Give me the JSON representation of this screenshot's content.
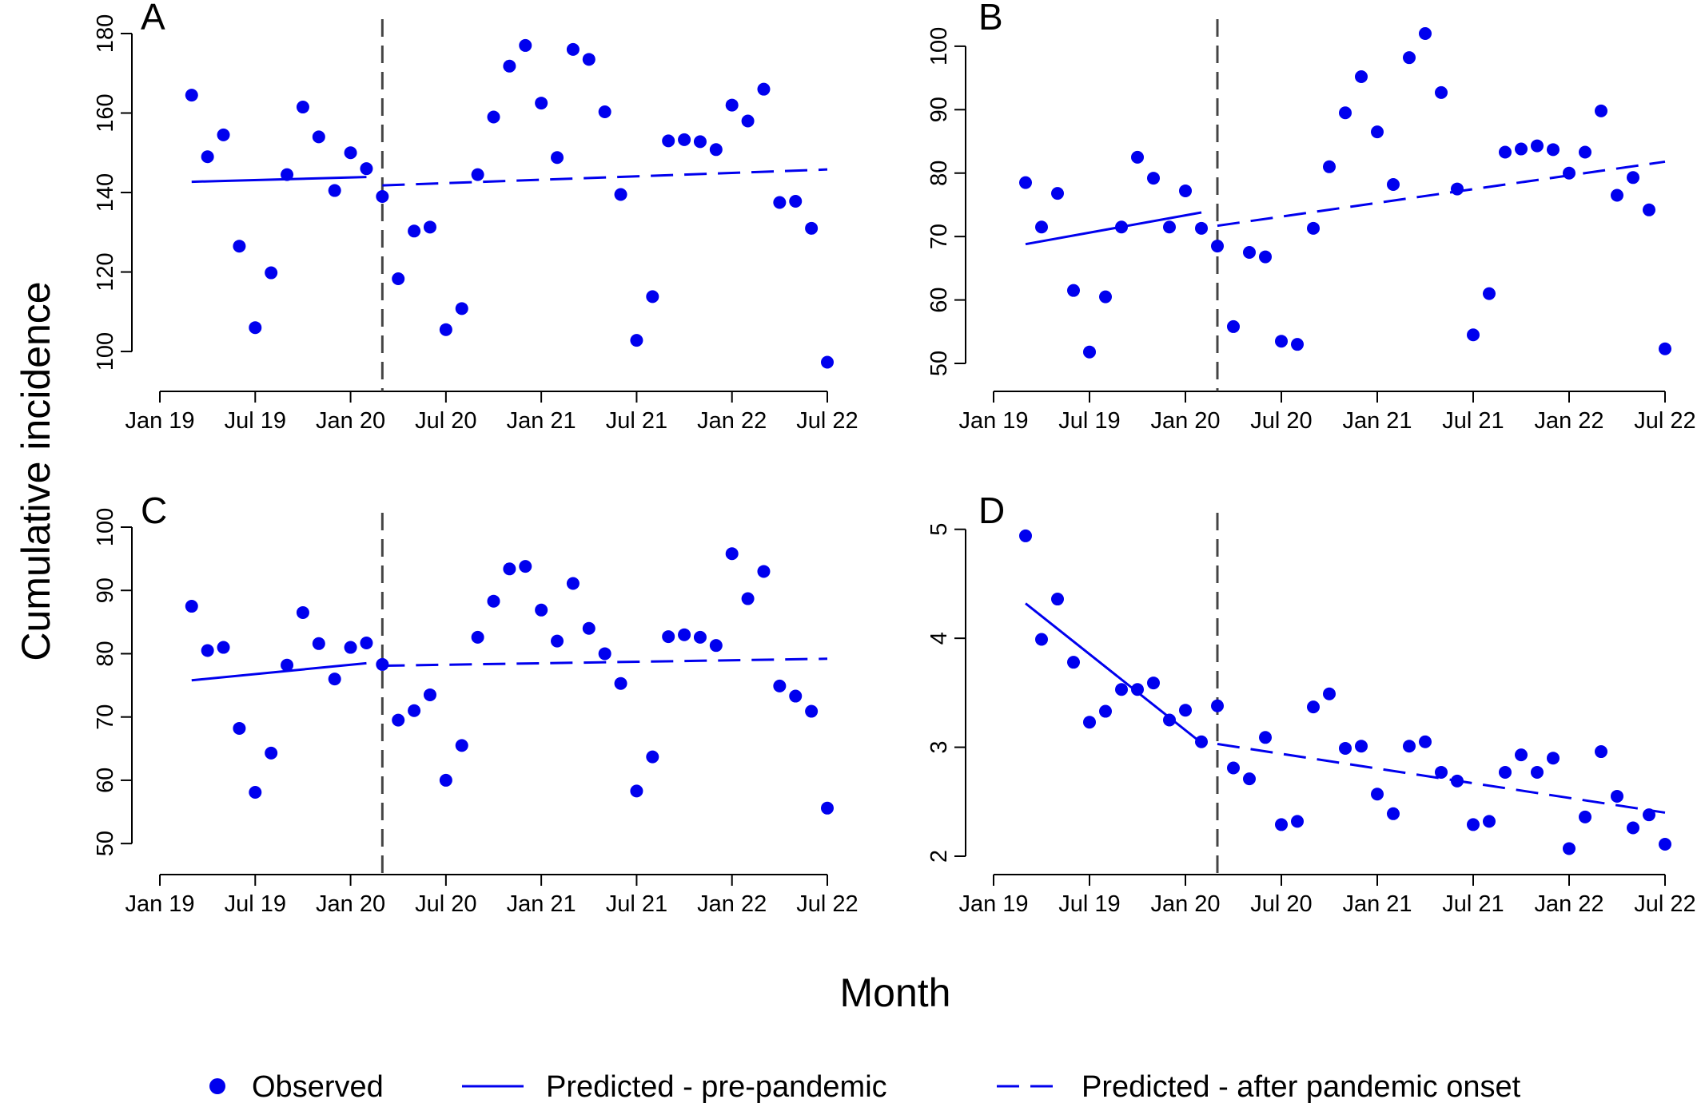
{
  "figure": {
    "ylabel": "Cumulative incidence",
    "xlabel": "Month",
    "legend": {
      "placement": "bottom",
      "items": [
        {
          "label": "Observed",
          "kind": "point"
        },
        {
          "label": "Predicted - pre-pandemic",
          "kind": "solid-line"
        },
        {
          "label": "Predicted - after pandemic onset",
          "kind": "dashed-line"
        }
      ]
    },
    "colors": {
      "series": "#0000ee",
      "reference_line": "#444444",
      "axis": "#000000"
    }
  },
  "chart_data": [
    {
      "panel": "A",
      "type": "scatter",
      "x_ticks": [
        0,
        6,
        12,
        18,
        24,
        30,
        36,
        42
      ],
      "x_tick_labels": [
        "Jan 19",
        "Jul 19",
        "Jan 20",
        "Jul 20",
        "Jan 21",
        "Jul 21",
        "Jan 22",
        "Jul 22"
      ],
      "xlim": [
        0,
        42
      ],
      "y_ticks": [
        100,
        120,
        140,
        160,
        180
      ],
      "ylim": [
        97,
        180
      ],
      "interruption_x": 14,
      "observed": [
        164.5,
        149,
        154.5,
        126.5,
        106,
        119.8,
        144.5,
        161.5,
        154,
        140.5,
        150,
        146,
        139,
        118.3,
        130.3,
        131.3,
        105.5,
        110.8,
        144.5,
        159,
        171.8,
        177,
        162.5,
        148.8,
        176,
        173.5,
        160.3,
        139.5,
        102.8,
        113.8,
        153,
        153.3,
        152.8,
        150.8,
        162,
        158,
        166,
        137.5,
        137.8,
        131,
        97.3
      ],
      "pre_fit": {
        "x": [
          2,
          13
        ],
        "y": [
          142.7,
          143.9
        ]
      },
      "post_fit": {
        "x": [
          14,
          42
        ],
        "y": [
          141.8,
          145.8
        ]
      }
    },
    {
      "panel": "B",
      "type": "scatter",
      "x_ticks": [
        0,
        6,
        12,
        18,
        24,
        30,
        36,
        42
      ],
      "x_tick_labels": [
        "Jan 19",
        "Jul 19",
        "Jan 20",
        "Jul 20",
        "Jan 21",
        "Jul 21",
        "Jan 22",
        "Jul 22"
      ],
      "xlim": [
        0,
        42
      ],
      "y_ticks": [
        50,
        60,
        70,
        80,
        90,
        100
      ],
      "ylim": [
        50,
        102
      ],
      "interruption_x": 14,
      "observed": [
        78.5,
        71.5,
        76.8,
        61.5,
        51.8,
        60.5,
        71.5,
        82.5,
        79.2,
        71.5,
        77.2,
        71.3,
        68.5,
        55.8,
        67.5,
        66.8,
        53.5,
        53,
        71.3,
        81,
        89.5,
        95.2,
        86.5,
        78.2,
        98.2,
        102,
        92.7,
        77.5,
        54.5,
        61,
        83.3,
        83.8,
        84.3,
        83.7,
        80,
        83.3,
        89.8,
        76.5,
        79.3,
        74.2,
        52.3
      ],
      "pre_fit": {
        "x": [
          2,
          13
        ],
        "y": [
          68.8,
          73.8
        ]
      },
      "post_fit": {
        "x": [
          14,
          42
        ],
        "y": [
          71.7,
          81.8
        ]
      }
    },
    {
      "panel": "C",
      "type": "scatter",
      "x_ticks": [
        0,
        6,
        12,
        18,
        24,
        30,
        36,
        42
      ],
      "x_tick_labels": [
        "Jan 19",
        "Jul 19",
        "Jan 20",
        "Jul 20",
        "Jan 21",
        "Jul 21",
        "Jan 22",
        "Jul 22"
      ],
      "xlim": [
        0,
        42
      ],
      "y_ticks": [
        50,
        60,
        70,
        80,
        90,
        100
      ],
      "ylim": [
        48,
        100
      ],
      "interruption_x": 14,
      "observed": [
        87.5,
        80.5,
        81,
        68.2,
        58.1,
        64.3,
        78.2,
        86.5,
        81.6,
        76,
        81,
        81.7,
        78.3,
        69.5,
        71,
        73.5,
        60,
        65.5,
        82.6,
        88.3,
        93.4,
        93.8,
        86.9,
        82,
        91.1,
        84,
        80,
        75.3,
        58.3,
        63.7,
        82.7,
        83,
        82.6,
        81.3,
        95.8,
        88.7,
        93,
        74.9,
        73.3,
        70.9,
        55.6
      ],
      "pre_fit": {
        "x": [
          2,
          13
        ],
        "y": [
          75.8,
          78.5
        ]
      },
      "post_fit": {
        "x": [
          14,
          42
        ],
        "y": [
          78.1,
          79.2
        ]
      }
    },
    {
      "panel": "D",
      "type": "scatter",
      "x_ticks": [
        0,
        6,
        12,
        18,
        24,
        30,
        36,
        42
      ],
      "x_tick_labels": [
        "Jan 19",
        "Jul 19",
        "Jan 20",
        "Jul 20",
        "Jan 21",
        "Jul 21",
        "Jan 22",
        "Jul 22"
      ],
      "xlim": [
        0,
        42
      ],
      "y_ticks": [
        2,
        3,
        4,
        5
      ],
      "ylim": [
        2,
        5.02
      ],
      "interruption_x": 14,
      "observed": [
        4.94,
        3.99,
        4.36,
        3.78,
        3.23,
        3.33,
        3.53,
        3.53,
        3.59,
        3.25,
        3.34,
        3.05,
        3.38,
        2.81,
        2.71,
        3.09,
        2.29,
        2.32,
        3.37,
        3.49,
        2.99,
        3.01,
        2.57,
        2.39,
        3.01,
        3.05,
        2.77,
        2.69,
        2.29,
        2.32,
        2.77,
        2.93,
        2.77,
        2.9,
        2.07,
        2.36,
        2.96,
        2.55,
        2.26,
        2.38,
        2.11
      ],
      "pre_fit": {
        "x": [
          2,
          13
        ],
        "y": [
          4.32,
          3.04
        ]
      },
      "post_fit": {
        "x": [
          14,
          42
        ],
        "y": [
          3.03,
          2.4
        ]
      }
    }
  ]
}
